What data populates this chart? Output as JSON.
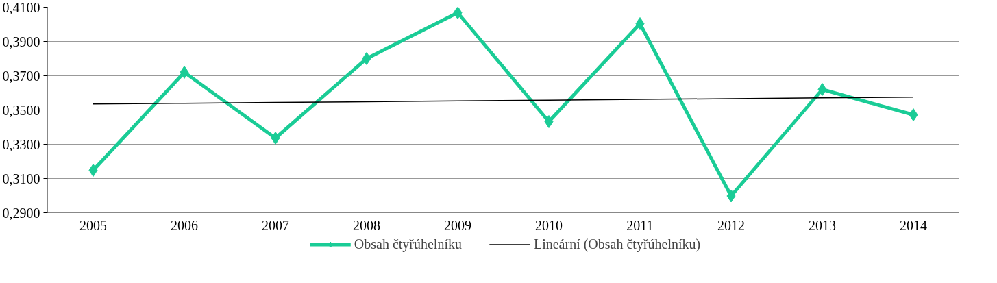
{
  "chart_data": {
    "type": "line",
    "categories": [
      "2005",
      "2006",
      "2007",
      "2008",
      "2009",
      "2010",
      "2011",
      "2012",
      "2013",
      "2014"
    ],
    "series": [
      {
        "name": "Obsah čtyřúhelníku",
        "color": "#1acc96",
        "values": [
          0.3148,
          0.372,
          0.3336,
          0.38,
          0.4068,
          0.3432,
          0.4004,
          0.2998,
          0.362,
          0.3472
        ],
        "marker": "diamond"
      },
      {
        "name": "Lineární (Obsah čtyřúhelníku)",
        "color": "#000000",
        "type": "line",
        "values": [
          0.3535,
          0.3539,
          0.3544,
          0.3548,
          0.3553,
          0.3557,
          0.3562,
          0.3566,
          0.3571,
          0.3575
        ],
        "marker": "none"
      }
    ],
    "ylim": [
      0.29,
      0.41
    ],
    "yticks": [
      {
        "value": 0.29,
        "label": "0,2900"
      },
      {
        "value": 0.31,
        "label": "0,3100"
      },
      {
        "value": 0.33,
        "label": "0,3300"
      },
      {
        "value": 0.35,
        "label": "0,3500"
      },
      {
        "value": 0.37,
        "label": "0,3700"
      },
      {
        "value": 0.39,
        "label": "0,3900"
      },
      {
        "value": 0.41,
        "label": "0,4100"
      }
    ],
    "grid": "y",
    "legend": "bottom"
  }
}
